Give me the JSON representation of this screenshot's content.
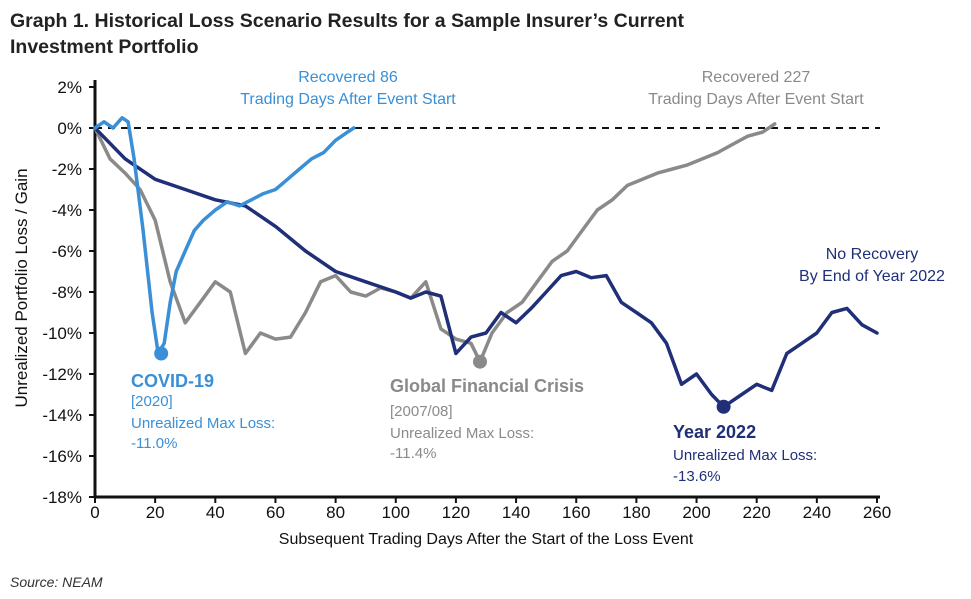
{
  "title": "Graph 1. Historical Loss Scenario Results for a Sample Insurer’s Current Investment Portfolio",
  "source": "Source: NEAM",
  "colors": {
    "covid": "#3a8fd6",
    "gfc": "#8a8a88",
    "y2022": "#1f2f78",
    "axis": "#111111"
  },
  "chart_data": {
    "type": "line",
    "title": "Graph 1. Historical Loss Scenario Results for a Sample Insurer’s Current Investment Portfolio",
    "xlabel": "Subsequent Trading Days After the Start of the Loss Event",
    "ylabel": "Unrealized Portfolio Loss / Gain",
    "xlim": [
      0,
      260
    ],
    "ylim": [
      -18,
      2
    ],
    "xticks": [
      0,
      20,
      40,
      60,
      80,
      100,
      120,
      140,
      160,
      180,
      200,
      220,
      240,
      260
    ],
    "xtick_labels": [
      "0",
      "20",
      "40",
      "60",
      "80",
      "100",
      "120",
      "140",
      "160",
      "180",
      "200",
      "220",
      "240",
      "260"
    ],
    "yticks": [
      2,
      0,
      -2,
      -4,
      -6,
      -8,
      -10,
      -12,
      -14,
      -16,
      -18
    ],
    "ytick_labels": [
      "2%",
      "0%",
      "-2%",
      "-4%",
      "-6%",
      "-8%",
      "-10%",
      "-12%",
      "-14%",
      "-16%",
      "-18%"
    ],
    "reference_line": {
      "y": 0,
      "style": "dashed"
    },
    "series": [
      {
        "name": "Global Financial Crisis",
        "key": "gfc",
        "x": [
          0,
          5,
          10,
          15,
          20,
          25,
          30,
          35,
          40,
          45,
          50,
          55,
          60,
          65,
          70,
          75,
          80,
          85,
          90,
          95,
          100,
          105,
          110,
          115,
          120,
          125,
          128,
          132,
          137,
          142,
          147,
          152,
          157,
          162,
          167,
          172,
          177,
          182,
          187,
          192,
          197,
          202,
          207,
          212,
          217,
          222,
          226
        ],
        "y": [
          0,
          -1.5,
          -2.2,
          -3.0,
          -4.5,
          -7.5,
          -9.5,
          -8.5,
          -7.5,
          -8.0,
          -11.0,
          -10.0,
          -10.3,
          -10.2,
          -9.0,
          -7.5,
          -7.2,
          -8.0,
          -8.2,
          -7.8,
          -8.0,
          -8.3,
          -7.5,
          -9.8,
          -10.3,
          -10.5,
          -11.4,
          -10.0,
          -9.0,
          -8.5,
          -7.5,
          -6.5,
          -6.0,
          -5.0,
          -4.0,
          -3.5,
          -2.8,
          -2.5,
          -2.2,
          -2.0,
          -1.8,
          -1.5,
          -1.2,
          -0.8,
          -0.4,
          -0.2,
          0.2
        ]
      },
      {
        "name": "Year 2022",
        "key": "y2022",
        "x": [
          0,
          10,
          20,
          30,
          40,
          50,
          60,
          70,
          80,
          90,
          100,
          105,
          110,
          115,
          120,
          125,
          130,
          135,
          140,
          145,
          150,
          155,
          160,
          165,
          170,
          175,
          180,
          185,
          190,
          195,
          200,
          205,
          209,
          215,
          220,
          225,
          230,
          235,
          240,
          245,
          250,
          255,
          260
        ],
        "y": [
          0,
          -1.5,
          -2.5,
          -3.0,
          -3.5,
          -3.8,
          -4.8,
          -6.0,
          -7.0,
          -7.5,
          -8.0,
          -8.3,
          -8.0,
          -8.2,
          -11.0,
          -10.2,
          -10.0,
          -9.0,
          -9.5,
          -8.8,
          -8.0,
          -7.2,
          -7.0,
          -7.3,
          -7.2,
          -8.5,
          -9.0,
          -9.5,
          -10.5,
          -12.5,
          -12.0,
          -13.0,
          -13.6,
          -13.0,
          -12.5,
          -12.8,
          -11.0,
          -10.5,
          -10.0,
          -9.0,
          -8.8,
          -9.6,
          -10.0
        ]
      },
      {
        "name": "COVID-19",
        "key": "covid",
        "x": [
          0,
          3,
          6,
          9,
          11,
          13,
          16,
          19,
          21,
          23,
          25,
          27,
          30,
          33,
          36,
          40,
          44,
          48,
          52,
          56,
          60,
          64,
          68,
          72,
          76,
          80,
          84,
          86
        ],
        "y": [
          0,
          0.3,
          0.0,
          0.5,
          0.3,
          -1.5,
          -5.0,
          -9.0,
          -11.0,
          -10.5,
          -8.5,
          -7.0,
          -6.0,
          -5.0,
          -4.5,
          -4.0,
          -3.6,
          -3.8,
          -3.5,
          -3.2,
          -3.0,
          -2.5,
          -2.0,
          -1.5,
          -1.2,
          -0.6,
          -0.2,
          0.0
        ]
      }
    ],
    "markers": [
      {
        "series": "covid",
        "x": 22,
        "y": -11.0
      },
      {
        "series": "gfc",
        "x": 128,
        "y": -11.4
      },
      {
        "series": "y2022",
        "x": 209,
        "y": -13.6
      }
    ],
    "annotations": {
      "covid_recovery": [
        "Recovered 86",
        "Trading Days After Event Start"
      ],
      "gfc_recovery": [
        "Recovered 227",
        "Trading Days After Event Start"
      ],
      "y2022_recovery": [
        "No Recovery",
        "By End of Year 2022"
      ],
      "covid_label": {
        "name": "COVID-19",
        "period": "[2020]",
        "max_loss_label": "Unrealized Max Loss:",
        "max_loss": "-11.0%"
      },
      "gfc_label": {
        "name": "Global Financial Crisis",
        "period": "[2007/08]",
        "max_loss_label": "Unrealized Max Loss:",
        "max_loss": "-11.4%"
      },
      "y2022_label": {
        "name": "Year 2022",
        "max_loss_label": "Unrealized Max Loss:",
        "max_loss": "-13.6%"
      }
    }
  }
}
